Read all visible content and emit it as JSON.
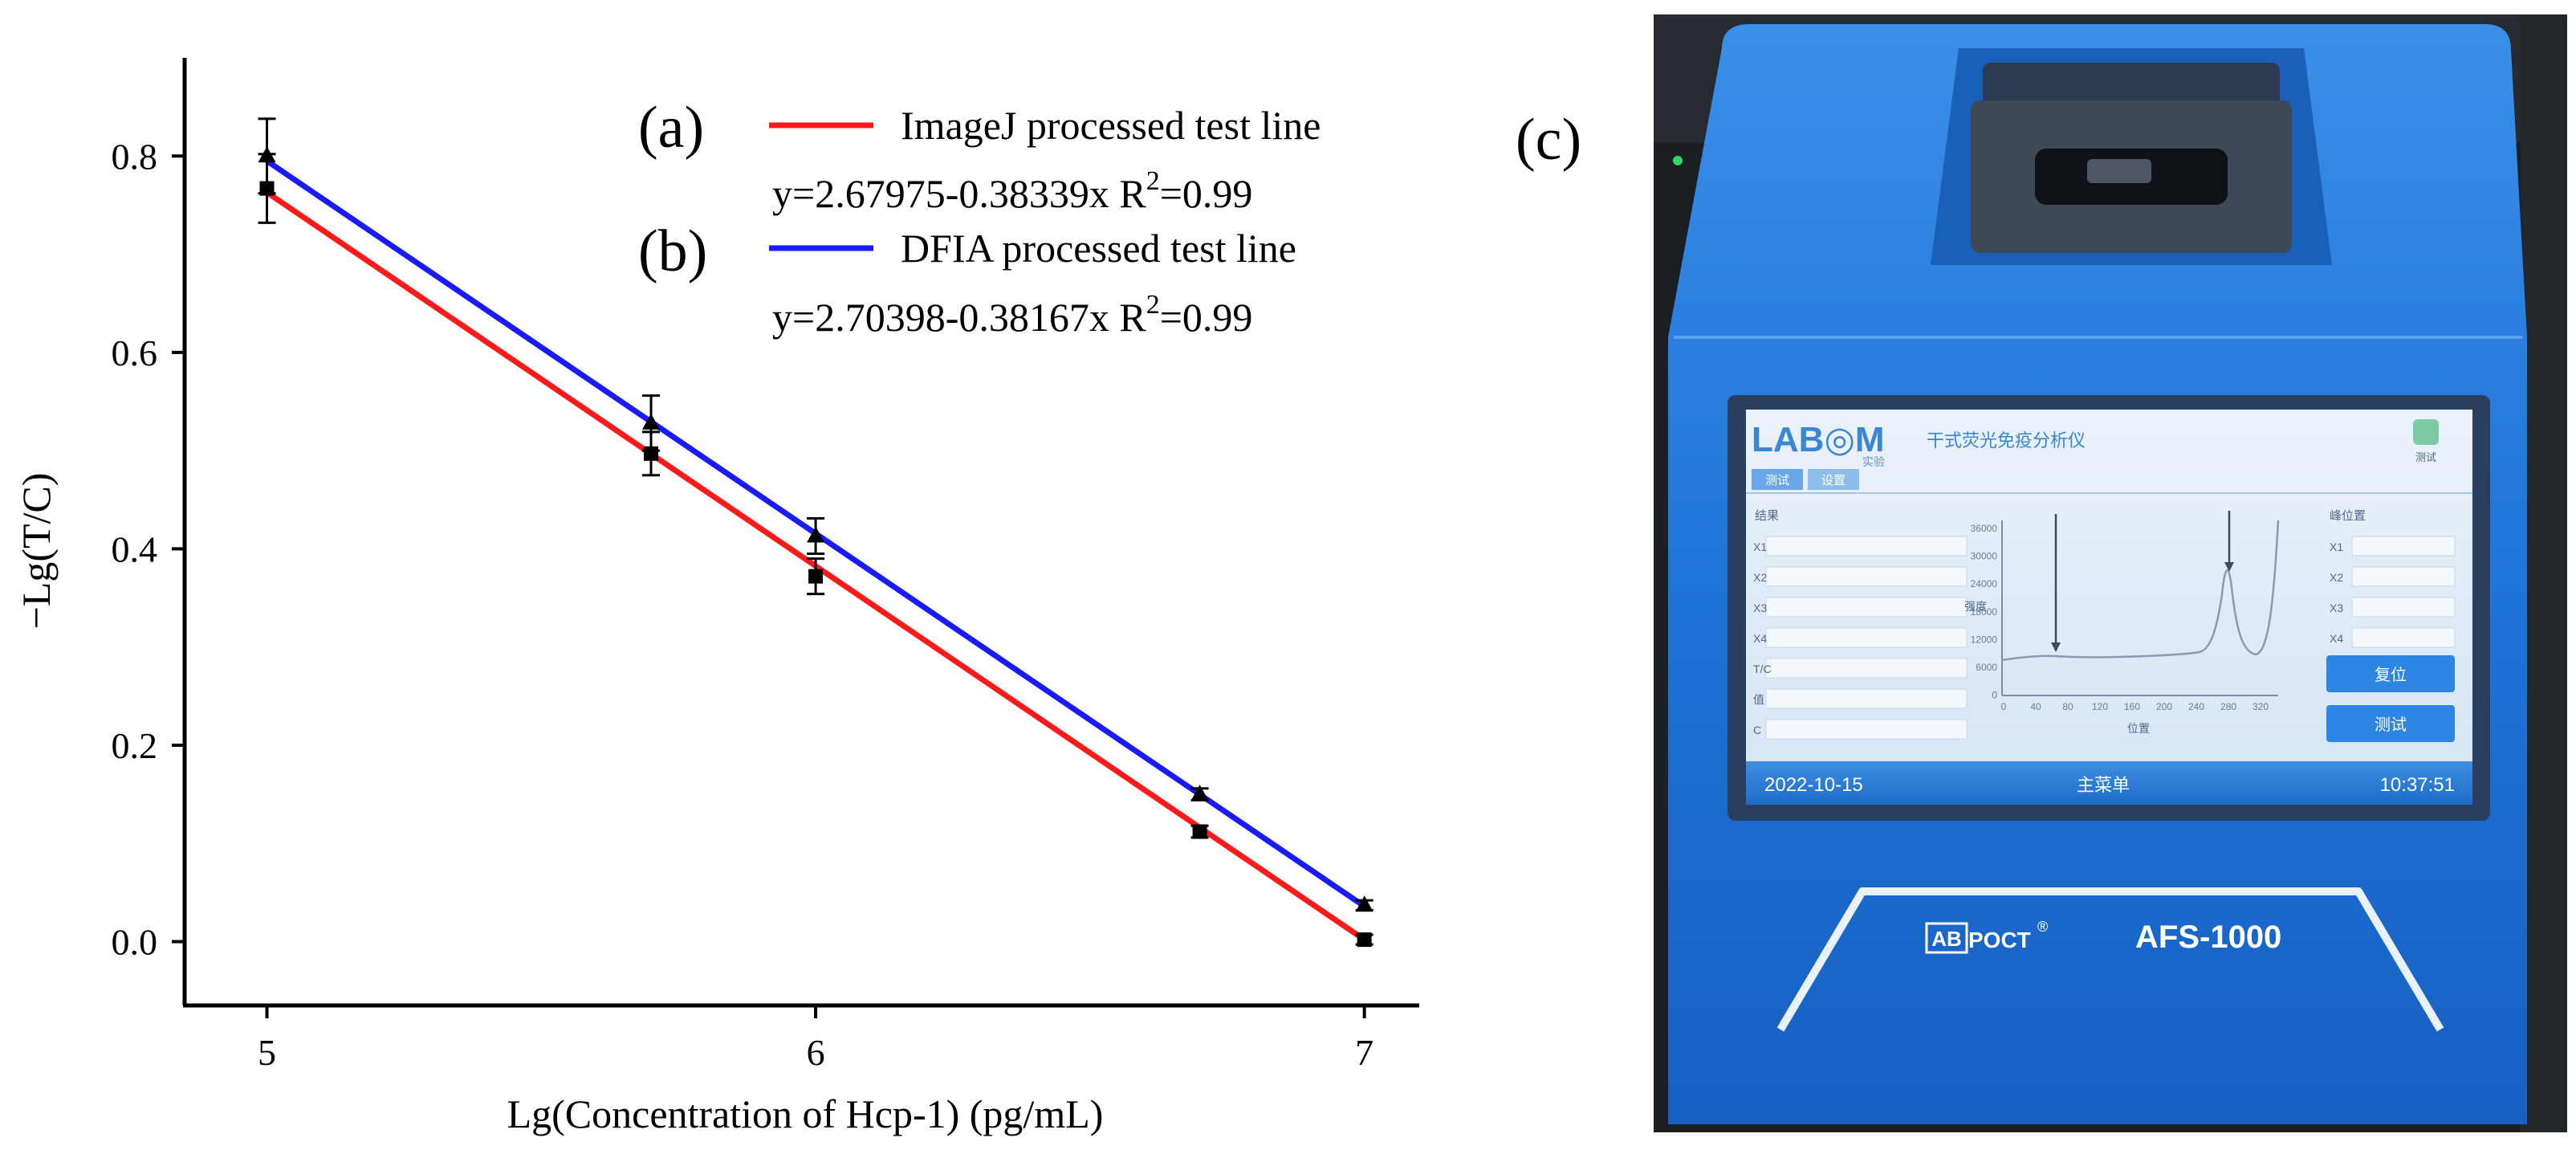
{
  "chart_data": {
    "type": "line",
    "title": "",
    "xlabel": "Lg(Concentration of Hcp-1) (pg/mL)",
    "ylabel": "−Lg(T/C)",
    "xlim": [
      4.85,
      7.1
    ],
    "ylim": [
      -0.065,
      0.9
    ],
    "xticks": [
      "5",
      "6",
      "7"
    ],
    "yticks": [
      "0.0",
      "0.2",
      "0.4",
      "0.6",
      "0.8"
    ],
    "x": [
      5,
      5.7,
      6,
      6.7,
      7
    ],
    "series": [
      {
        "name": "ImageJ processed test line",
        "panel": "(a)",
        "color": "#ff1a1a",
        "marker": "square",
        "values": [
          0.767,
          0.497,
          0.372,
          0.112,
          0.002
        ],
        "errors": [
          0.035,
          0.022,
          0.018,
          0.006,
          0.005
        ],
        "fit_line": [
          0.763,
          0.002
        ],
        "equation": "y=2.67975-0.38339x R",
        "equation_power": "2",
        "equation_tail": "=0.99"
      },
      {
        "name": "DFIA processed test line",
        "panel": "(b)",
        "color": "#1a1aff",
        "marker": "triangle",
        "values": [
          0.8,
          0.528,
          0.413,
          0.15,
          0.037
        ],
        "errors": [
          0.038,
          0.028,
          0.018,
          0.006,
          0.005
        ],
        "fit_line": [
          0.795,
          0.036
        ],
        "equation": "y=2.70398-0.38167x R",
        "equation_power": "2",
        "equation_tail": "=0.99"
      }
    ]
  },
  "panel_c": {
    "label": "(c)",
    "brand": "LAB",
    "brand_tail": "M",
    "brand_sub": "实验",
    "app_title": "干式荧光免疫分析仪",
    "tabs": [
      "测试",
      "设置"
    ],
    "top_icon_label": "测试",
    "left_header": "结果",
    "left_rows": [
      "X1",
      "X2",
      "X3",
      "X4",
      "T/C",
      "值",
      "C"
    ],
    "right_header": "峰位置",
    "right_rows": [
      "X1",
      "X2",
      "X3",
      "X4"
    ],
    "y_ticks": [
      "36000",
      "30000",
      "24000",
      "18000",
      "12000",
      "6000",
      "0"
    ],
    "x_ticks": [
      "0",
      "40",
      "80",
      "120",
      "160",
      "200",
      "240",
      "280",
      "320"
    ],
    "x_axis_label": "位置",
    "y_axis_label": "强度",
    "button_reset": "复位",
    "button_test": "测试",
    "date": "2022-10-15",
    "menu": "主菜单",
    "time": "10:37:51",
    "device_brand": "ABPOCT",
    "device_brand_box": "AB",
    "device_reg": "®",
    "device_model": "AFS-1000"
  }
}
